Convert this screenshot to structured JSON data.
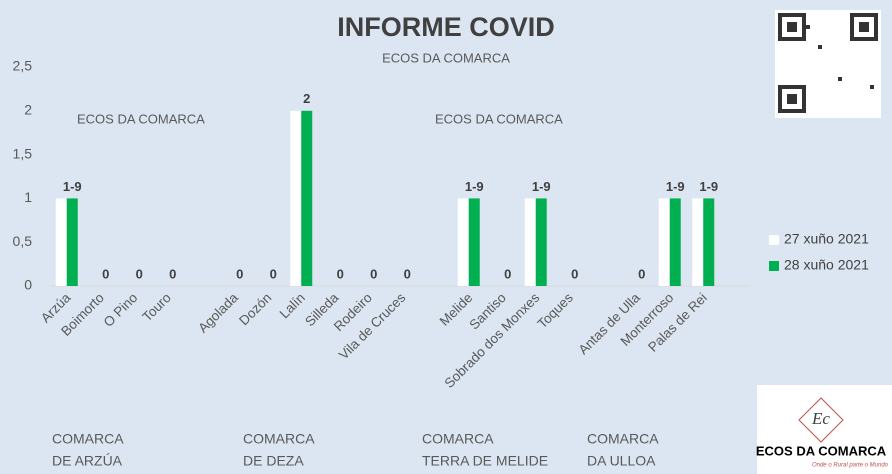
{
  "chart_data": {
    "type": "bar",
    "title": "INFORME COVID",
    "subtitle": "ECOS DA COMARCA",
    "watermarks": [
      "ECOS DA COMARCA",
      "ECOS DA COMARCA"
    ],
    "categories": [
      "Arzúa",
      "Boimorto",
      "O Pino",
      "Touro",
      null,
      "Agolada",
      "Dozón",
      "Lalín",
      "Silleda",
      "Rodeiro",
      "Vila de Cruces",
      null,
      "Melide",
      "Santiso",
      "Sobrado dos Monxes",
      "Toques",
      null,
      "Antas de Ulla",
      "Monterroso",
      "Palas de Rei"
    ],
    "series": [
      {
        "name": "27 xuño 2021",
        "color": "#ffffff",
        "values": [
          1,
          0,
          0,
          0,
          null,
          0,
          0,
          2,
          0,
          0,
          0,
          null,
          1,
          0,
          1,
          0,
          null,
          0,
          1,
          1
        ]
      },
      {
        "name": "28 xuño 2021",
        "color": "#00b050",
        "values": [
          1,
          0,
          0,
          0,
          null,
          0,
          0,
          2,
          0,
          0,
          0,
          null,
          1,
          0,
          1,
          0,
          null,
          0,
          1,
          1
        ],
        "value_labels": [
          "1-9",
          "0",
          "0",
          "0",
          null,
          "0",
          "0",
          "2",
          "0",
          "0",
          "0",
          null,
          "1-9",
          "0",
          "1-9",
          "0",
          null,
          "0",
          "1-9",
          "1-9"
        ]
      }
    ],
    "ylim": [
      0,
      2.5
    ],
    "yticks": [
      0,
      {
        "value": 0.5,
        "label": "0,5"
      },
      1,
      {
        "value": 1.5,
        "label": "1,5"
      },
      2,
      {
        "value": 2.5,
        "label": "2,5"
      }
    ],
    "groups": [
      [
        "COMARCA",
        "DE ARZÚA"
      ],
      [
        "COMARCA",
        "DE DEZA"
      ],
      [
        "COMARCA",
        "TERRA DE MELIDE"
      ],
      [
        "COMARCA",
        "DA ULLOA"
      ]
    ],
    "legend": "right",
    "logo": {
      "name": "ECOS DA COMARCA",
      "tagline": "Onde o Rural parte o Mundo",
      "mark": "Ec"
    }
  }
}
